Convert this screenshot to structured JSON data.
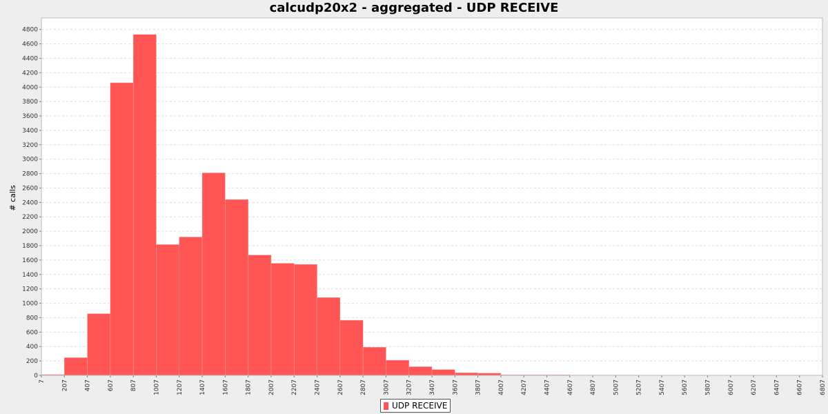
{
  "chart_data": {
    "type": "bar",
    "title": "calcudp20x2 - aggregated - UDP RECEIVE",
    "ylabel": "# calls",
    "xlabel": "",
    "ylim": [
      0,
      4960
    ],
    "xlim": [
      7,
      6807
    ],
    "bin_width": 200,
    "y_tick_step": 200,
    "y_ticks": [
      "0",
      "200",
      "400",
      "600",
      "800",
      "1000",
      "1200",
      "1400",
      "1600",
      "1800",
      "2000",
      "2200",
      "2400",
      "2600",
      "2800",
      "3000",
      "3200",
      "3400",
      "3600",
      "3800",
      "4000",
      "4200",
      "4400",
      "4600",
      "4800"
    ],
    "x_ticks": [
      "7",
      "207",
      "407",
      "607",
      "807",
      "1007",
      "1207",
      "1407",
      "1607",
      "1807",
      "2007",
      "2207",
      "2407",
      "2607",
      "2807",
      "3007",
      "3207",
      "3407",
      "3607",
      "3807",
      "4007",
      "4207",
      "4407",
      "4607",
      "4807",
      "5007",
      "5207",
      "5407",
      "5607",
      "5807",
      "6007",
      "6207",
      "6407",
      "6607",
      "6807"
    ],
    "bins_start": [
      7,
      207,
      407,
      607,
      807,
      1007,
      1207,
      1407,
      1607,
      1807,
      2007,
      2207,
      2407,
      2607,
      2807,
      3007,
      3207,
      3407,
      3607,
      3807,
      4007,
      4207,
      4407,
      4607,
      4807,
      5007,
      5207,
      5407,
      5607,
      5807,
      6007,
      6207,
      6407,
      6607
    ],
    "series": [
      {
        "name": "UDP RECEIVE",
        "color": "#ff5555",
        "values": [
          10,
          245,
          855,
          4060,
          4730,
          1815,
          1920,
          2810,
          2440,
          1670,
          1555,
          1540,
          1080,
          765,
          390,
          210,
          120,
          80,
          35,
          30,
          8,
          8,
          8,
          3,
          3,
          3,
          2,
          2,
          1,
          1,
          1,
          1,
          1,
          1
        ]
      }
    ],
    "grid": true,
    "legend_position": "bottom-center"
  }
}
